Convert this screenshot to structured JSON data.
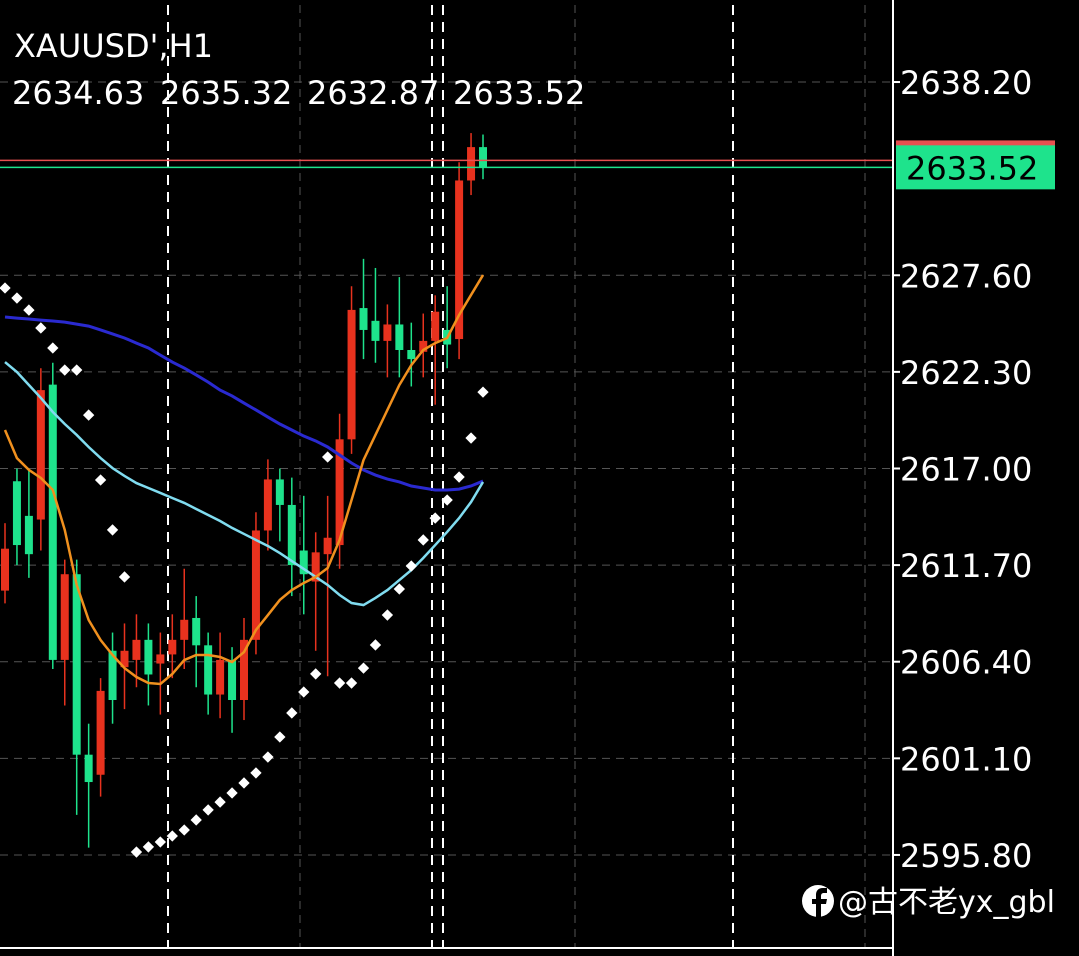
{
  "chart_data": {
    "type": "candlestick",
    "title": "XAUUSD',H1",
    "watermark": "@古不老yx_gbl",
    "up_color": "#e8321e",
    "down_color": "#1ee38c",
    "ylim": [
      2590.86,
      2642.7
    ],
    "yticks": [
      {
        "value": 2595.8,
        "label": "2595.80"
      },
      {
        "value": 2601.1,
        "label": "2601.10"
      },
      {
        "value": 2606.4,
        "label": "2606.40"
      },
      {
        "value": 2611.7,
        "label": "2611.70"
      },
      {
        "value": 2617,
        "label": "2617.00"
      },
      {
        "value": 2622.3,
        "label": "2622.30"
      },
      {
        "value": 2627.6,
        "label": "2627.60"
      },
      {
        "value": 2638.2,
        "label": "2638.20"
      }
    ],
    "grid": true,
    "ask": 2633.9,
    "ask_color": "#e85050",
    "bid_color": "#1ee38c",
    "open": [
      2610.3,
      2616.3,
      2614.4,
      2614.2,
      2621.6,
      2606.5,
      2611.2,
      2601.3,
      2600.2,
      2607,
      2606.1,
      2606.5,
      2607.6,
      2606.3,
      2606.8,
      2607.6,
      2608.8,
      2607.3,
      2604.6,
      2606.5,
      2604.3,
      2607.6,
      2613.6,
      2616.4,
      2615,
      2612.5,
      2610.8,
      2612.3,
      2612.8,
      2618.6,
      2625.8,
      2625.1,
      2624,
      2624.9,
      2623.5,
      2623.4,
      2624,
      2624.6,
      2624.1,
      2632.8,
      2634.63
    ],
    "high": [
      2614,
      2617,
      2617,
      2622.5,
      2622.8,
      2612,
      2612,
      2603,
      2605.5,
      2608,
      2608.5,
      2609,
      2608.5,
      2608,
      2609,
      2611.5,
      2610,
      2608,
      2608,
      2607.2,
      2608.8,
      2614.6,
      2617.5,
      2617,
      2616.5,
      2615.5,
      2613.5,
      2615.5,
      2620,
      2627,
      2628.5,
      2628,
      2626,
      2627.5,
      2625,
      2625.5,
      2626.5,
      2627,
      2633.8,
      2635.4,
      2635.32
    ],
    "low": [
      2609.6,
      2611.7,
      2611,
      2612.5,
      2606,
      2604,
      2598,
      2596.2,
      2599,
      2603,
      2603.8,
      2605,
      2604,
      2603.5,
      2605.5,
      2606,
      2605,
      2603.5,
      2603.3,
      2602.5,
      2603.2,
      2606.8,
      2612.5,
      2613,
      2610,
      2609,
      2607,
      2605.6,
      2611.5,
      2617.8,
      2623,
      2622.8,
      2622,
      2622,
      2621.5,
      2622,
      2620.5,
      2622.5,
      2623,
      2632,
      2632.87
    ],
    "close": [
      2612.6,
      2612.8,
      2612.3,
      2621.3,
      2606.5,
      2611.2,
      2601.3,
      2599.8,
      2604.8,
      2604.3,
      2607,
      2607.6,
      2605.7,
      2606.8,
      2607.6,
      2608.7,
      2607.3,
      2604.6,
      2606.5,
      2604.3,
      2607.6,
      2613.6,
      2616.4,
      2615,
      2611.7,
      2611.2,
      2612.4,
      2613.2,
      2618.6,
      2625.7,
      2624.6,
      2624,
      2624.9,
      2623.5,
      2623,
      2624,
      2625.6,
      2623.8,
      2632.8,
      2634.63,
      2633.52
    ],
    "series": [
      {
        "color": "#2a2ad0",
        "style": "line",
        "values": [
          2625.31,
          2625.25,
          2625.2,
          2625.14,
          2625.09,
          2625.03,
          2624.92,
          2624.81,
          2624.6,
          2624.38,
          2624.16,
          2623.88,
          2623.61,
          2623.22,
          2622.84,
          2622.51,
          2622.13,
          2621.74,
          2621.3,
          2620.98,
          2620.59,
          2620.21,
          2619.82,
          2619.44,
          2619.11,
          2618.78,
          2618.51,
          2618.18,
          2617.74,
          2617.3,
          2616.92,
          2616.64,
          2616.42,
          2616.26,
          2616.04,
          2615.93,
          2615.82,
          2615.82,
          2615.87,
          2616.04,
          2616.31
        ]
      },
      {
        "color": "#80dcf0",
        "style": "line",
        "values": [
          2622.84,
          2622.29,
          2621.58,
          2620.87,
          2620.1,
          2619.44,
          2618.84,
          2618.18,
          2617.57,
          2617.02,
          2616.59,
          2616.2,
          2615.93,
          2615.66,
          2615.38,
          2615.11,
          2614.78,
          2614.45,
          2614.12,
          2613.74,
          2613.41,
          2613.08,
          2612.75,
          2612.36,
          2611.92,
          2611.49,
          2611.05,
          2610.61,
          2610.06,
          2609.62,
          2609.51,
          2609.9,
          2610.33,
          2610.88,
          2611.43,
          2612.09,
          2612.8,
          2613.52,
          2614.28,
          2615.16,
          2616.26
        ]
      },
      {
        "color": "#f0901e",
        "style": "line",
        "values": [
          2619.11,
          2617.57,
          2616.92,
          2616.48,
          2615.82,
          2613.63,
          2610.61,
          2608.69,
          2607.59,
          2606.77,
          2606.05,
          2605.56,
          2605.23,
          2605.18,
          2605.73,
          2606.49,
          2606.77,
          2606.77,
          2606.66,
          2606.38,
          2606.93,
          2608.14,
          2608.96,
          2609.79,
          2610.33,
          2610.72,
          2611.05,
          2611.54,
          2613.08,
          2615.27,
          2617.46,
          2618.84,
          2620.21,
          2621.58,
          2622.67,
          2623.5,
          2623.88,
          2624.16,
          2625.42,
          2626.52,
          2627.61
        ]
      },
      {
        "color": "#ffffff",
        "style": "dots",
        "values": [
          2626.9,
          2626.35,
          2625.69,
          2624.71,
          2623.61,
          2622.4,
          2622.4,
          2619.93,
          2616.37,
          2613.63,
          2611.05,
          2595.96,
          2596.24,
          2596.51,
          2596.84,
          2597.17,
          2597.72,
          2598.27,
          2598.7,
          2599.2,
          2599.75,
          2600.3,
          2601.17,
          2602.27,
          2603.59,
          2604.74,
          2605.73,
          2617.63,
          2605.23,
          2605.23,
          2606.05,
          2607.32,
          2608.96,
          2610.39,
          2611.65,
          2613.08,
          2614.28,
          2615.27,
          2616.53,
          2618.67,
          2621.19
        ]
      }
    ]
  }
}
